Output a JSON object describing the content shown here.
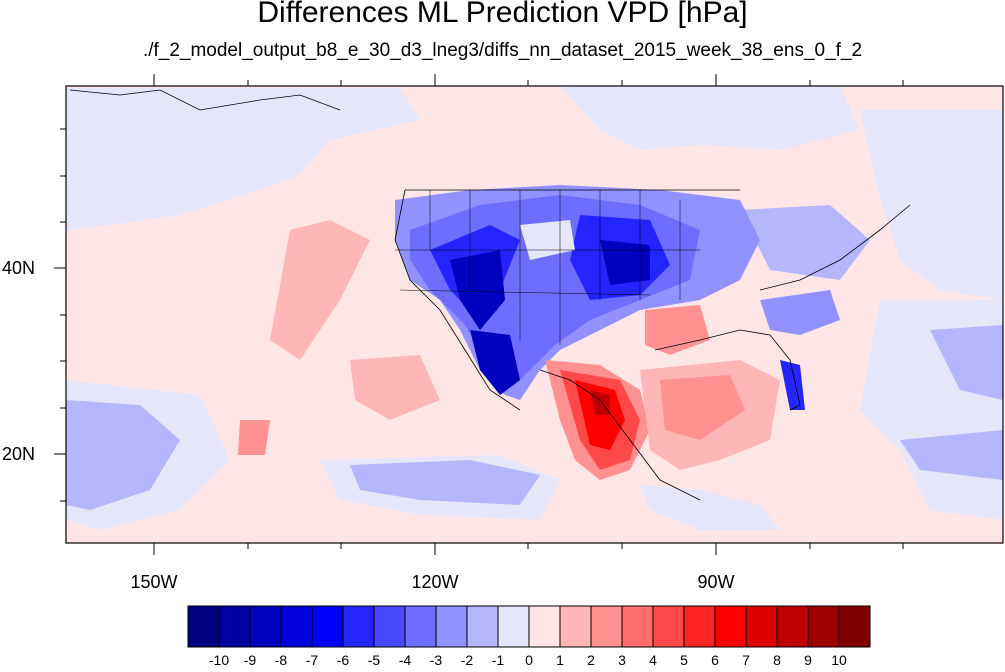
{
  "title": "Differences ML Prediction VPD [hPa]",
  "subtitle": "./f_2_model_output_b8_e_30_d3_lneg3/diffs_nn_dataset_2015_week_38_ens_0_f_2",
  "map": {
    "lat_labels": [
      "40N",
      "20N"
    ],
    "lon_labels": [
      "150W",
      "120W",
      "90W"
    ]
  },
  "colorbar": {
    "labels": [
      "-10",
      "-9",
      "-8",
      "-7",
      "-6",
      "-5",
      "-4",
      "-3",
      "-2",
      "-1",
      "0",
      "1",
      "2",
      "3",
      "4",
      "5",
      "6",
      "7",
      "8",
      "9",
      "10"
    ],
    "colors": [
      "#000080",
      "#00009f",
      "#0000bf",
      "#0000df",
      "#0000ff",
      "#2424ff",
      "#4848ff",
      "#6d6dff",
      "#9191ff",
      "#b6b6ff",
      "#e6e6fa",
      "#ffe6e6",
      "#ffb6b6",
      "#ff9191",
      "#ff6d6d",
      "#ff4848",
      "#ff2424",
      "#ff0000",
      "#df0000",
      "#bf0000",
      "#9f0000",
      "#800000"
    ]
  }
}
